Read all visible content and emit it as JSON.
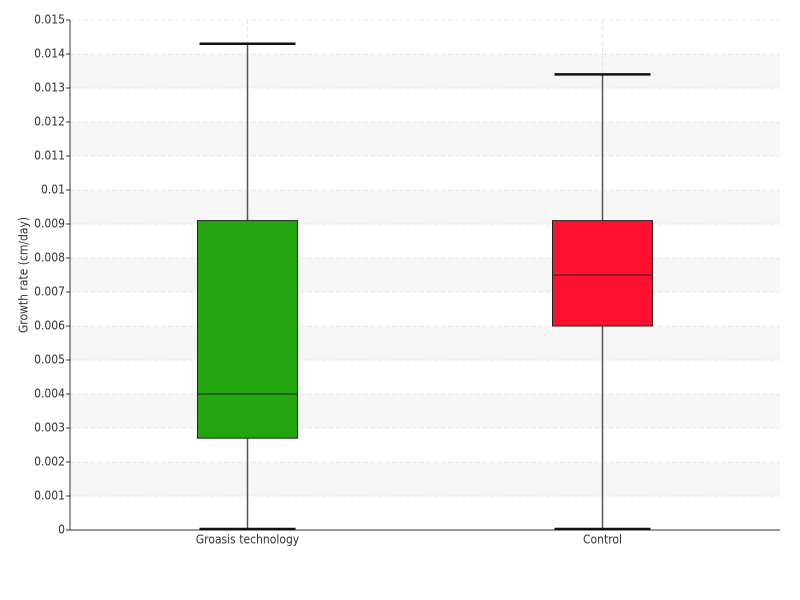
{
  "chart_data": {
    "type": "box",
    "y_label": "Growth rate (cm/day)",
    "categories": [
      "Groasis technology",
      "Control"
    ],
    "colors": [
      "#22a50f",
      "#ff1030"
    ],
    "boxes": [
      {
        "min": 0,
        "q1": 0.0027,
        "median": 0.004,
        "q3": 0.0091,
        "max": 0.0143
      },
      {
        "min": 0,
        "q1": 0.006,
        "median": 0.0075,
        "q3": 0.0091,
        "max": 0.0134
      }
    ],
    "ylim": [
      0,
      0.015
    ],
    "yticks": [
      0,
      0.001,
      0.002,
      0.003,
      0.004,
      0.005,
      0.006,
      0.007,
      0.008,
      0.009,
      0.01,
      0.011,
      0.012,
      0.013,
      0.014,
      0.015
    ],
    "grid": true
  }
}
